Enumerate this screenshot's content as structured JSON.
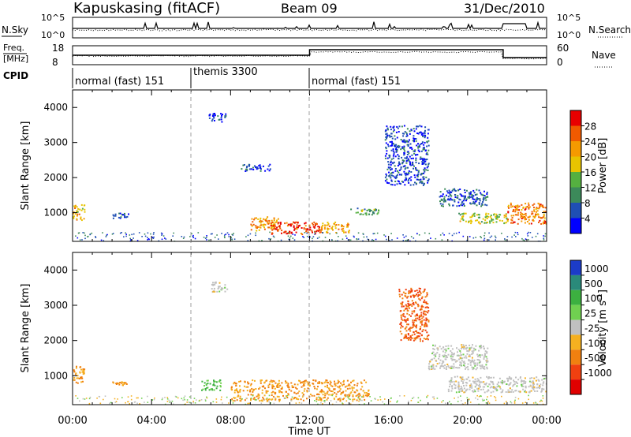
{
  "header": {
    "station": "Kapuskasing (fitACF)",
    "beam": "Beam 09",
    "date": "31/Dec/2010"
  },
  "top_panels": {
    "nsky_label": "N.Sky",
    "nsky_ticks": [
      "10^5",
      "10^0"
    ],
    "nsearch_label": "N.Search",
    "freq_label_1": "Freq.",
    "freq_label_2": "[MHz]",
    "freq_ticks": [
      "18",
      "8"
    ],
    "nave_label": "Nave",
    "nave_ticks": [
      "60",
      "0"
    ],
    "cpid_label": "CPID"
  },
  "cpid_segments": [
    {
      "label": "normal (fast) 151",
      "start_hour": 0
    },
    {
      "label": "themis 3300",
      "start_hour": 6
    },
    {
      "label": "normal (fast) 151",
      "start_hour": 12
    }
  ],
  "chart_data": [
    {
      "type": "heatmap",
      "name": "power",
      "xlabel": "",
      "ylabel": "Slant Range [km]",
      "xlim": [
        0,
        24
      ],
      "ylim": [
        180,
        4500
      ],
      "yticks": [
        "1000",
        "2000",
        "3000",
        "4000"
      ],
      "colorbar": {
        "label": "Power [dB]",
        "ticks": [
          "4",
          "8",
          "12",
          "16",
          "20",
          "24",
          "28"
        ],
        "colors": [
          "#0000ff",
          "#1f4fb4",
          "#3c8a5a",
          "#55b040",
          "#e8c400",
          "#f59a00",
          "#f05a00",
          "#e80000"
        ]
      },
      "regions": [
        {
          "x": [
            0.0,
            0.6
          ],
          "y": [
            800,
            1250
          ],
          "value": 20
        },
        {
          "x": [
            2.0,
            2.8
          ],
          "y": [
            850,
            1000
          ],
          "value": 6
        },
        {
          "x": [
            6.8,
            7.8
          ],
          "y": [
            3600,
            3850
          ],
          "value": 5
        },
        {
          "x": [
            8.5,
            10.0
          ],
          "y": [
            2200,
            2400
          ],
          "value": 5
        },
        {
          "x": [
            9.0,
            10.5
          ],
          "y": [
            500,
            900
          ],
          "value": 22
        },
        {
          "x": [
            10.0,
            12.5
          ],
          "y": [
            400,
            750
          ],
          "value": 28
        },
        {
          "x": [
            12.5,
            14.0
          ],
          "y": [
            450,
            750
          ],
          "value": 22
        },
        {
          "x": [
            14.0,
            15.5
          ],
          "y": [
            950,
            1150
          ],
          "value": 12
        },
        {
          "x": [
            15.8,
            18.0
          ],
          "y": [
            1800,
            3500
          ],
          "value": 5
        },
        {
          "x": [
            18.5,
            21.0
          ],
          "y": [
            1200,
            1700
          ],
          "value": 6
        },
        {
          "x": [
            19.5,
            22.0
          ],
          "y": [
            700,
            1000
          ],
          "value": 16
        },
        {
          "x": [
            22.0,
            24.0
          ],
          "y": [
            700,
            1300
          ],
          "value": 24
        }
      ]
    },
    {
      "type": "heatmap",
      "name": "velocity",
      "xlabel": "Time UT",
      "ylabel": "Slant Range [km]",
      "xlim": [
        0,
        24
      ],
      "ylim": [
        180,
        4500
      ],
      "xticks": [
        "00:00",
        "04:00",
        "08:00",
        "12:00",
        "16:00",
        "20:00",
        "00:00"
      ],
      "yticks": [
        "1000",
        "2000",
        "3000",
        "4000"
      ],
      "colorbar": {
        "label": "Velocity [m s^-1]",
        "ticks": [
          "1000",
          "500",
          "100",
          "25",
          "-25",
          "-100",
          "-500",
          "-1000"
        ],
        "colors": [
          "#1c3cc8",
          "#2a8a7a",
          "#3cb040",
          "#70d050",
          "#c0c0c0",
          "#f5b020",
          "#f08010",
          "#f04010",
          "#e00000"
        ]
      },
      "regions": [
        {
          "x": [
            0.0,
            0.6
          ],
          "y": [
            800,
            1300
          ],
          "value": -100
        },
        {
          "x": [
            2.0,
            2.8
          ],
          "y": [
            750,
            850
          ],
          "value": -100
        },
        {
          "x": [
            7.0,
            7.8
          ],
          "y": [
            3400,
            3700
          ],
          "value": 0
        },
        {
          "x": [
            6.5,
            7.5
          ],
          "y": [
            600,
            900
          ],
          "value": 100
        },
        {
          "x": [
            8.0,
            15.0
          ],
          "y": [
            300,
            900
          ],
          "value": -100
        },
        {
          "x": [
            16.5,
            18.0
          ],
          "y": [
            2000,
            3500
          ],
          "value": -500
        },
        {
          "x": [
            18.0,
            21.0
          ],
          "y": [
            1200,
            1900
          ],
          "value": 0
        },
        {
          "x": [
            19.0,
            24.0
          ],
          "y": [
            550,
            1000
          ],
          "value": 0
        }
      ]
    }
  ]
}
